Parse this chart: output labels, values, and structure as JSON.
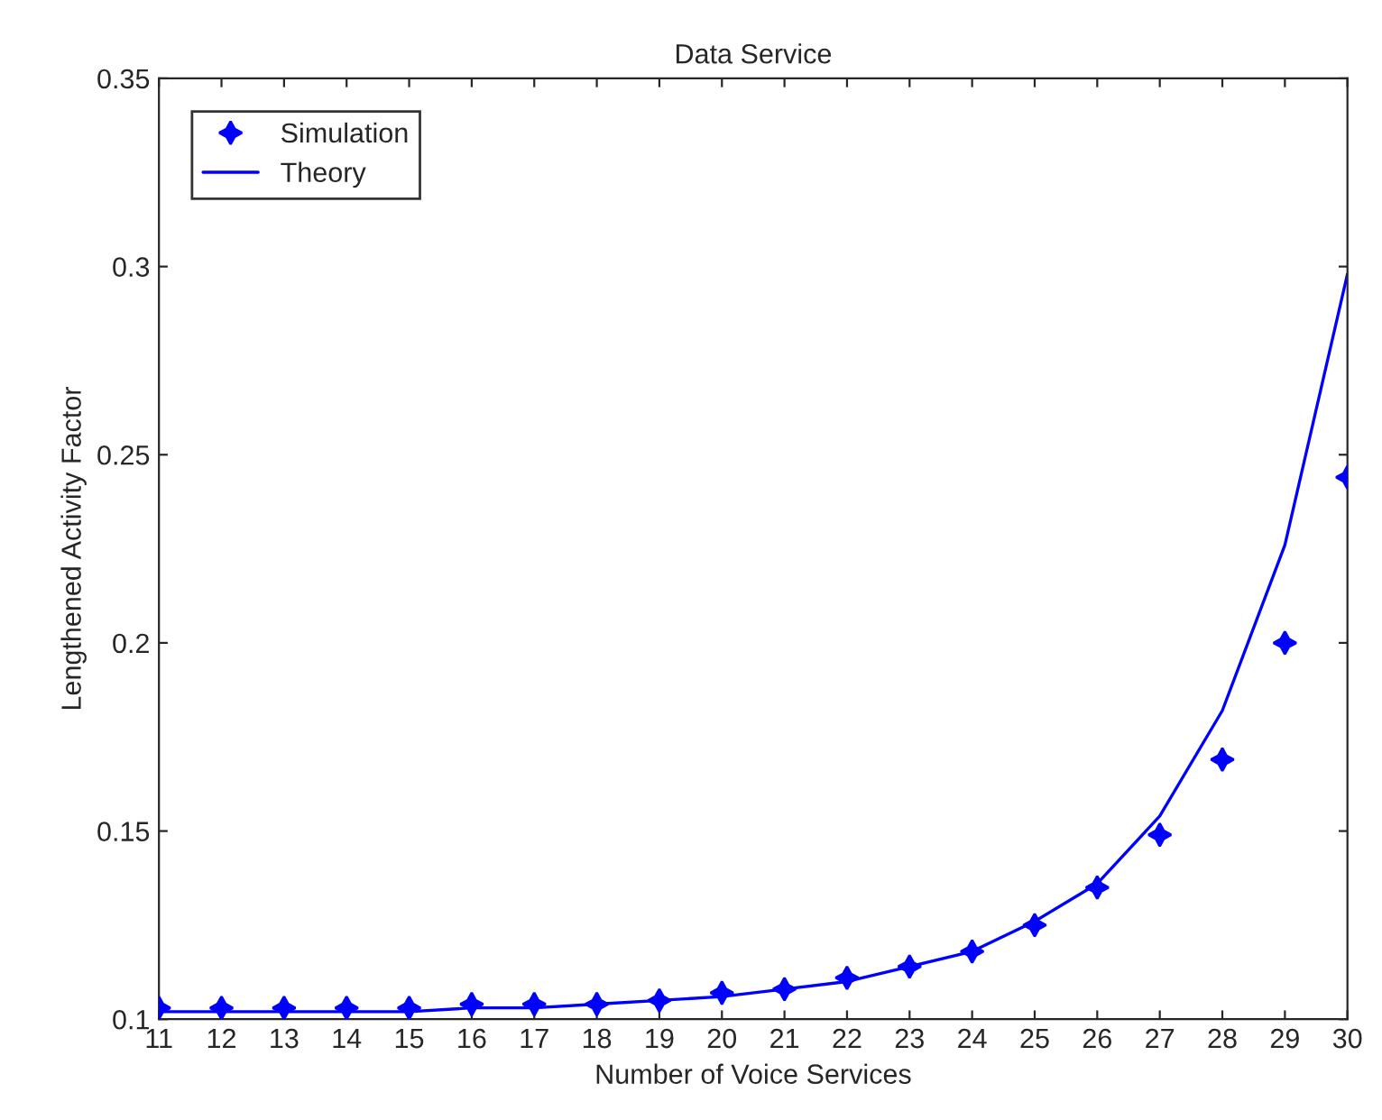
{
  "chart_data": {
    "type": "line",
    "title": "Data Service",
    "xlabel": "Number of Voice Services",
    "ylabel": "Lengthened Activity Factor",
    "x": [
      11,
      12,
      13,
      14,
      15,
      16,
      17,
      18,
      19,
      20,
      21,
      22,
      23,
      24,
      25,
      26,
      27,
      28,
      29,
      30
    ],
    "series": [
      {
        "name": "Simulation",
        "type": "scatter",
        "marker": "star",
        "color": "#0000ff",
        "values": [
          0.103,
          0.103,
          0.103,
          0.103,
          0.103,
          0.104,
          0.104,
          0.104,
          0.105,
          0.107,
          0.108,
          0.111,
          0.114,
          0.118,
          0.125,
          0.135,
          0.149,
          0.169,
          0.2,
          0.244
        ]
      },
      {
        "name": "Theory",
        "line_style": "solid",
        "color": "#0000ff",
        "values": [
          0.102,
          0.102,
          0.102,
          0.102,
          0.102,
          0.103,
          0.103,
          0.104,
          0.105,
          0.106,
          0.108,
          0.11,
          0.114,
          0.118,
          0.126,
          0.136,
          0.154,
          0.182,
          0.226,
          0.298
        ]
      }
    ],
    "xlim": [
      11,
      30
    ],
    "xticks": [
      11,
      12,
      13,
      14,
      15,
      16,
      17,
      18,
      19,
      20,
      21,
      22,
      23,
      24,
      25,
      26,
      27,
      28,
      29,
      30
    ],
    "ylim": [
      0.1,
      0.35
    ],
    "yticks": [
      0.1,
      0.15,
      0.2,
      0.25,
      0.3,
      0.35
    ],
    "grid": false,
    "legend": "top left"
  }
}
